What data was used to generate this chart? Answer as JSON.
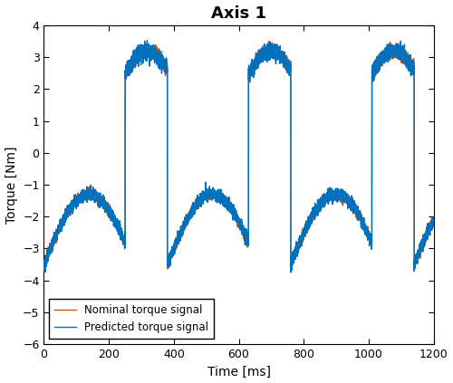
{
  "title": "Axis 1",
  "xlabel": "Time [ms]",
  "ylabel": "Torque [Nm]",
  "xlim": [
    0,
    1200
  ],
  "ylim": [
    -6,
    4
  ],
  "yticks": [
    -6,
    -5,
    -4,
    -3,
    -2,
    -1,
    0,
    1,
    2,
    3,
    4
  ],
  "xticks": [
    0,
    200,
    400,
    600,
    800,
    1000,
    1200
  ],
  "predicted_color": "#0072BD",
  "nominal_color": "#D95319",
  "legend_labels": [
    "Predicted torque signal",
    "Nominal torque signal"
  ],
  "figsize": [
    5.0,
    4.23
  ],
  "dpi": 100,
  "title_fontsize": 13,
  "label_fontsize": 10,
  "tick_fontsize": 9,
  "legend_fontsize": 8.5,
  "linewidth": 1.0
}
